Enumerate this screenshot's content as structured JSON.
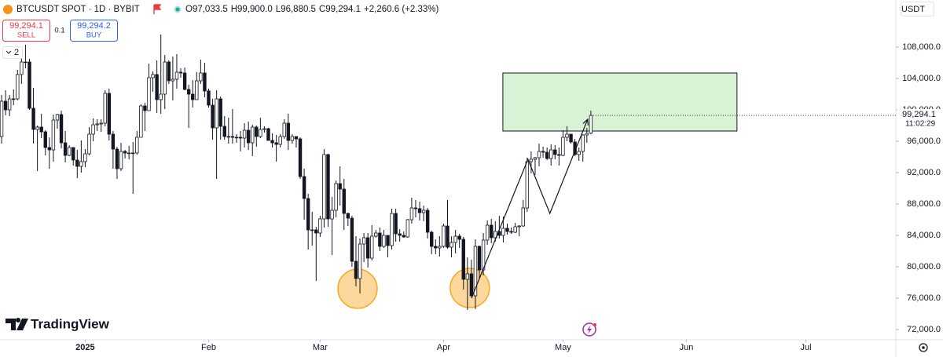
{
  "header": {
    "symbol": "BTCUSDT SPOT · 1D · BYBIT",
    "open": "O97,033.5",
    "high": "H99,900.0",
    "low": "L96,880.5",
    "close": "C99,294.1",
    "change": "+2,260.6 (+2.33%)"
  },
  "trade": {
    "sell_price": "99,294.1",
    "sell": "SELL",
    "quantity": "0.1",
    "buy_price": "99,294.2",
    "buy": "BUY"
  },
  "indicators_count": "2",
  "currency": "USDT",
  "logo": "TradingView",
  "chart_data": {
    "type": "candlestick",
    "up_color": "#ffffff",
    "down_color": "#131722",
    "outline_color": "#131722",
    "grid": false,
    "xlim": [
      -0.4,
      224.6
    ],
    "xticks": [
      {
        "value": 21,
        "label": "2025"
      },
      {
        "value": 52,
        "label": "Feb"
      },
      {
        "value": 80,
        "label": "Mar"
      },
      {
        "value": 111,
        "label": "Apr"
      },
      {
        "value": 141,
        "label": "May"
      },
      {
        "value": 172,
        "label": "Jun"
      },
      {
        "value": 202,
        "label": "Jul"
      }
    ],
    "ylim": [
      70700,
      114000
    ],
    "yticks": [
      {
        "value": 72000,
        "label": "72,000.0"
      },
      {
        "value": 76000,
        "label": "76,000.0"
      },
      {
        "value": 80000,
        "label": "80,000.0"
      },
      {
        "value": 84000,
        "label": "84,000.0"
      },
      {
        "value": 88000,
        "label": "88,000.0"
      },
      {
        "value": 92000,
        "label": "92,000.0"
      },
      {
        "value": 96000,
        "label": "96,000.0"
      },
      {
        "value": 100000,
        "label": "100,000.0"
      },
      {
        "value": 104000,
        "label": "104,000.0"
      },
      {
        "value": 108000,
        "label": "108,000.0"
      }
    ],
    "last_price": {
      "value": 99294.1,
      "label": "99,294.1"
    },
    "countdown": "11:02:29",
    "ohlc": [
      [
        96600,
        101900,
        95700,
        101100
      ],
      [
        101100,
        102500,
        99300,
        100000
      ],
      [
        100000,
        101900,
        99200,
        101400
      ],
      [
        101400,
        102600,
        100600,
        101400
      ],
      [
        101400,
        105100,
        101200,
        104500
      ],
      [
        104500,
        107800,
        103300,
        106100
      ],
      [
        106100,
        108300,
        105300,
        106100
      ],
      [
        106100,
        106500,
        100000,
        100200
      ],
      [
        100200,
        102800,
        95700,
        97500
      ],
      [
        97500,
        98000,
        92200,
        97800
      ],
      [
        97800,
        99500,
        96400,
        97200
      ],
      [
        97200,
        97400,
        94200,
        95200
      ],
      [
        95200,
        96500,
        92500,
        94900
      ],
      [
        94900,
        99400,
        93400,
        98700
      ],
      [
        98700,
        99500,
        97600,
        99400
      ],
      [
        99400,
        99900,
        95100,
        95800
      ],
      [
        95800,
        97300,
        93300,
        94200
      ],
      [
        94200,
        95500,
        94100,
        95200
      ],
      [
        95200,
        95200,
        92900,
        93600
      ],
      [
        93600,
        94900,
        91300,
        92800
      ],
      [
        92800,
        96100,
        92000,
        93400
      ],
      [
        93400,
        95000,
        92700,
        94400
      ],
      [
        94400,
        97800,
        94200,
        96900
      ],
      [
        96900,
        98900,
        96000,
        98100
      ],
      [
        98100,
        98800,
        97300,
        98200
      ],
      [
        98200,
        98800,
        97200,
        98300
      ],
      [
        98300,
        102500,
        97900,
        102100
      ],
      [
        102100,
        102700,
        96100,
        96900
      ],
      [
        96900,
        97300,
        92500,
        95000
      ],
      [
        95000,
        95300,
        91200,
        92500
      ],
      [
        92500,
        95800,
        92200,
        94700
      ],
      [
        94700,
        94900,
        93800,
        94500
      ],
      [
        94500,
        95400,
        93700,
        94500
      ],
      [
        94500,
        95900,
        89300,
        94500
      ],
      [
        94500,
        97300,
        94300,
        96500
      ],
      [
        96500,
        100700,
        96500,
        100500
      ],
      [
        100500,
        100900,
        97300,
        99900
      ],
      [
        99900,
        105900,
        99900,
        104100
      ],
      [
        104100,
        104900,
        102300,
        104500
      ],
      [
        104500,
        106300,
        99600,
        101300
      ],
      [
        101300,
        109600,
        99500,
        102000
      ],
      [
        102000,
        107000,
        100100,
        106100
      ],
      [
        106100,
        106300,
        103300,
        103700
      ],
      [
        103700,
        106800,
        101200,
        103900
      ],
      [
        103900,
        107100,
        102700,
        104800
      ],
      [
        104800,
        105300,
        104100,
        104700
      ],
      [
        104700,
        105400,
        102500,
        102600
      ],
      [
        102600,
        103200,
        97700,
        102000
      ],
      [
        102000,
        103800,
        100300,
        101300
      ],
      [
        101300,
        104800,
        101300,
        103700
      ],
      [
        103700,
        106400,
        103300,
        104700
      ],
      [
        104700,
        106000,
        101600,
        102400
      ],
      [
        102400,
        102700,
        100300,
        100600
      ],
      [
        100600,
        101400,
        96200,
        97700
      ],
      [
        97700,
        102500,
        91200,
        101400
      ],
      [
        101400,
        101700,
        96200,
        97900
      ],
      [
        97900,
        99200,
        96200,
        96600
      ],
      [
        96600,
        99000,
        95700,
        96600
      ],
      [
        96600,
        100100,
        95700,
        96500
      ],
      [
        96500,
        96900,
        95800,
        96500
      ],
      [
        96500,
        97300,
        94700,
        96400
      ],
      [
        96400,
        98300,
        95200,
        97400
      ],
      [
        97400,
        98500,
        94900,
        95800
      ],
      [
        95800,
        98100,
        94100,
        97800
      ],
      [
        97800,
        98000,
        95300,
        96600
      ],
      [
        96600,
        99000,
        96400,
        97500
      ],
      [
        97500,
        97900,
        97100,
        97600
      ],
      [
        97600,
        97700,
        96100,
        96100
      ],
      [
        96100,
        97000,
        95200,
        95800
      ],
      [
        95800,
        96800,
        93400,
        95600
      ],
      [
        95600,
        96900,
        95200,
        96600
      ],
      [
        96600,
        98800,
        96300,
        98300
      ],
      [
        98300,
        99500,
        94900,
        96100
      ],
      [
        96100,
        96900,
        95700,
        96600
      ],
      [
        96600,
        96600,
        95200,
        96300
      ],
      [
        96300,
        96500,
        91200,
        91500
      ],
      [
        91500,
        92500,
        86000,
        88700
      ],
      [
        88700,
        89300,
        82200,
        84700
      ],
      [
        84700,
        87000,
        82700,
        84700
      ],
      [
        84700,
        85100,
        78200,
        84300
      ],
      [
        84300,
        86500,
        83800,
        86100
      ],
      [
        86100,
        95000,
        85000,
        94300
      ],
      [
        94300,
        94400,
        85100,
        86100
      ],
      [
        86100,
        88900,
        81500,
        87200
      ],
      [
        87200,
        91000,
        86300,
        90600
      ],
      [
        90600,
        92800,
        87800,
        89900
      ],
      [
        89900,
        91200,
        84700,
        86800
      ],
      [
        86800,
        86900,
        85200,
        86200
      ],
      [
        86200,
        86500,
        80000,
        80700
      ],
      [
        80700,
        83900,
        77500,
        78500
      ],
      [
        78500,
        83600,
        76600,
        82900
      ],
      [
        82900,
        84300,
        80600,
        83700
      ],
      [
        83700,
        84300,
        79900,
        81100
      ],
      [
        81100,
        85300,
        80800,
        83900
      ],
      [
        83900,
        84700,
        83700,
        84300
      ],
      [
        84300,
        85000,
        82000,
        82600
      ],
      [
        82600,
        84700,
        82400,
        84000
      ],
      [
        84000,
        84000,
        81200,
        82700
      ],
      [
        82700,
        87400,
        82200,
        86800
      ],
      [
        86800,
        87400,
        83200,
        84200
      ],
      [
        84200,
        84800,
        83200,
        84000
      ],
      [
        84000,
        84500,
        83700,
        83800
      ],
      [
        83800,
        86100,
        83700,
        86000
      ],
      [
        86000,
        88800,
        85500,
        87500
      ],
      [
        87500,
        88500,
        86300,
        87400
      ],
      [
        87400,
        88300,
        85900,
        86900
      ],
      [
        86900,
        87800,
        85800,
        87200
      ],
      [
        87200,
        87500,
        83600,
        84400
      ],
      [
        84400,
        84600,
        81600,
        82600
      ],
      [
        82600,
        83500,
        81600,
        82400
      ],
      [
        82400,
        83900,
        81300,
        82600
      ],
      [
        82600,
        85500,
        82400,
        85200
      ],
      [
        85200,
        88500,
        82300,
        82500
      ],
      [
        82500,
        83900,
        81200,
        83100
      ],
      [
        83100,
        84700,
        81700,
        83900
      ],
      [
        83900,
        84200,
        82400,
        83500
      ],
      [
        83500,
        83800,
        77100,
        78400
      ],
      [
        78400,
        81200,
        74500,
        79100
      ],
      [
        79100,
        80900,
        76200,
        76300
      ],
      [
        76300,
        83500,
        74600,
        82600
      ],
      [
        82600,
        82700,
        78500,
        79600
      ],
      [
        79600,
        84300,
        78900,
        83400
      ],
      [
        83400,
        85900,
        82800,
        85300
      ],
      [
        85300,
        86100,
        83000,
        83700
      ],
      [
        83700,
        85800,
        83200,
        84500
      ],
      [
        84500,
        86500,
        83600,
        84000
      ],
      [
        84000,
        86400,
        83100,
        84900
      ],
      [
        84900,
        85500,
        84100,
        84500
      ],
      [
        84500,
        85000,
        84200,
        84400
      ],
      [
        84400,
        85600,
        84300,
        85100
      ],
      [
        85100,
        85300,
        83900,
        85200
      ],
      [
        85200,
        88500,
        85100,
        87500
      ],
      [
        87500,
        93900,
        87000,
        93400
      ],
      [
        93400,
        94700,
        91900,
        93700
      ],
      [
        93700,
        94000,
        91700,
        93900
      ],
      [
        93900,
        95700,
        92800,
        94700
      ],
      [
        94700,
        95300,
        93900,
        94600
      ],
      [
        94600,
        95200,
        93600,
        93800
      ],
      [
        93800,
        95600,
        92900,
        94900
      ],
      [
        94900,
        95500,
        93700,
        94300
      ],
      [
        94300,
        95200,
        92900,
        94200
      ],
      [
        94200,
        97400,
        94100,
        96500
      ],
      [
        96500,
        97900,
        96000,
        96900
      ],
      [
        96900,
        96900,
        95700,
        95900
      ],
      [
        95900,
        96300,
        94100,
        94300
      ],
      [
        94300,
        95200,
        93500,
        94700
      ],
      [
        94700,
        96900,
        93400,
        96800
      ],
      [
        96800,
        97700,
        95800,
        97000
      ],
      [
        97033.5,
        99900,
        96880.5,
        99294.1
      ]
    ],
    "annotations": {
      "zone": {
        "x": [
          125.9,
          184.7
        ],
        "y": [
          97300,
          104700
        ],
        "color": "#d9f2d6",
        "border": "#131722"
      },
      "circles": [
        {
          "x": 89.4,
          "y": 77200
        },
        {
          "x": 117.6,
          "y": 77300
        }
      ],
      "circle_color": "#f9a825",
      "path": {
        "x": [
          118,
          132.2,
          137.7,
          147.2
        ],
        "y": [
          76000,
          93700,
          86800,
          98800
        ]
      }
    }
  }
}
